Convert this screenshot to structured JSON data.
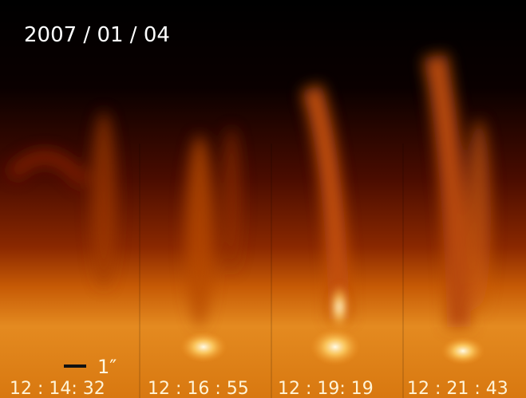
{
  "title": "2007 / 01 / 04",
  "scale_label": "1″",
  "panels": [
    {
      "time": "12 : 14: 32"
    },
    {
      "time": "12 : 16 : 55"
    },
    {
      "time": "12 : 19: 19"
    },
    {
      "time": "12 : 21 : 43"
    }
  ]
}
